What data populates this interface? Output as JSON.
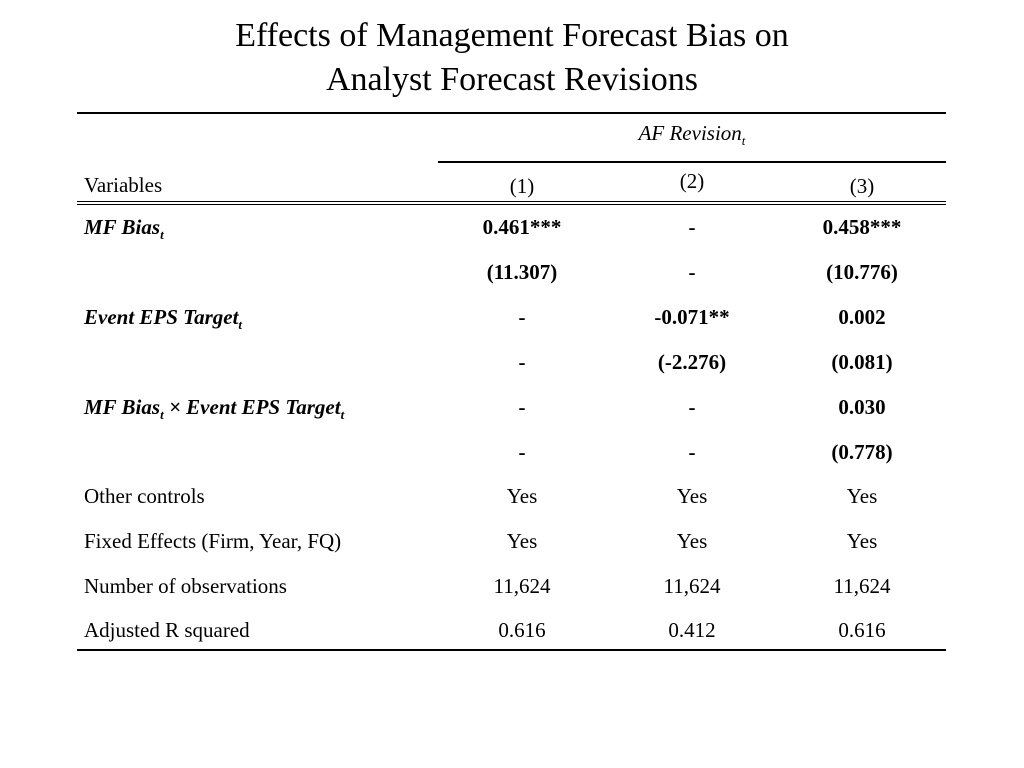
{
  "title": {
    "line1": "Effects of Management Forecast Bias on",
    "line2": "Analyst Forecast Revisions"
  },
  "table": {
    "spanner": {
      "text": "AF Revision",
      "sub": "t"
    },
    "header": {
      "label": "Variables",
      "columns": [
        "(1)",
        "(2)",
        "(3)"
      ]
    },
    "rows": [
      {
        "label": "MF Bias",
        "label_sub": "t",
        "values": [
          "0.461***",
          "-",
          "0.458***"
        ]
      },
      {
        "label": "",
        "values": [
          "(11.307)",
          "-",
          "(10.776)"
        ]
      },
      {
        "label": "Event EPS Target",
        "label_sub": "t",
        "values": [
          "-",
          "-0.071**",
          "0.002"
        ]
      },
      {
        "label": "",
        "values": [
          "-",
          "(-2.276)",
          "(0.081)"
        ]
      },
      {
        "label_parts": [
          "MF Bias",
          "t",
          " × Event EPS Target",
          "t"
        ],
        "values": [
          "-",
          "-",
          "0.030"
        ]
      },
      {
        "label": "",
        "values": [
          "-",
          "-",
          "(0.778)"
        ]
      },
      {
        "label": "Other controls",
        "values": [
          "Yes",
          "Yes",
          "Yes"
        ]
      },
      {
        "label": "Fixed Effects (Firm, Year, FQ)",
        "values": [
          "Yes",
          "Yes",
          "Yes"
        ]
      },
      {
        "label": "Number of observations",
        "values": [
          "11,624",
          "11,624",
          "11,624"
        ]
      },
      {
        "label": "Adjusted R squared",
        "values": [
          "0.616",
          "0.412",
          "0.616"
        ]
      }
    ]
  }
}
